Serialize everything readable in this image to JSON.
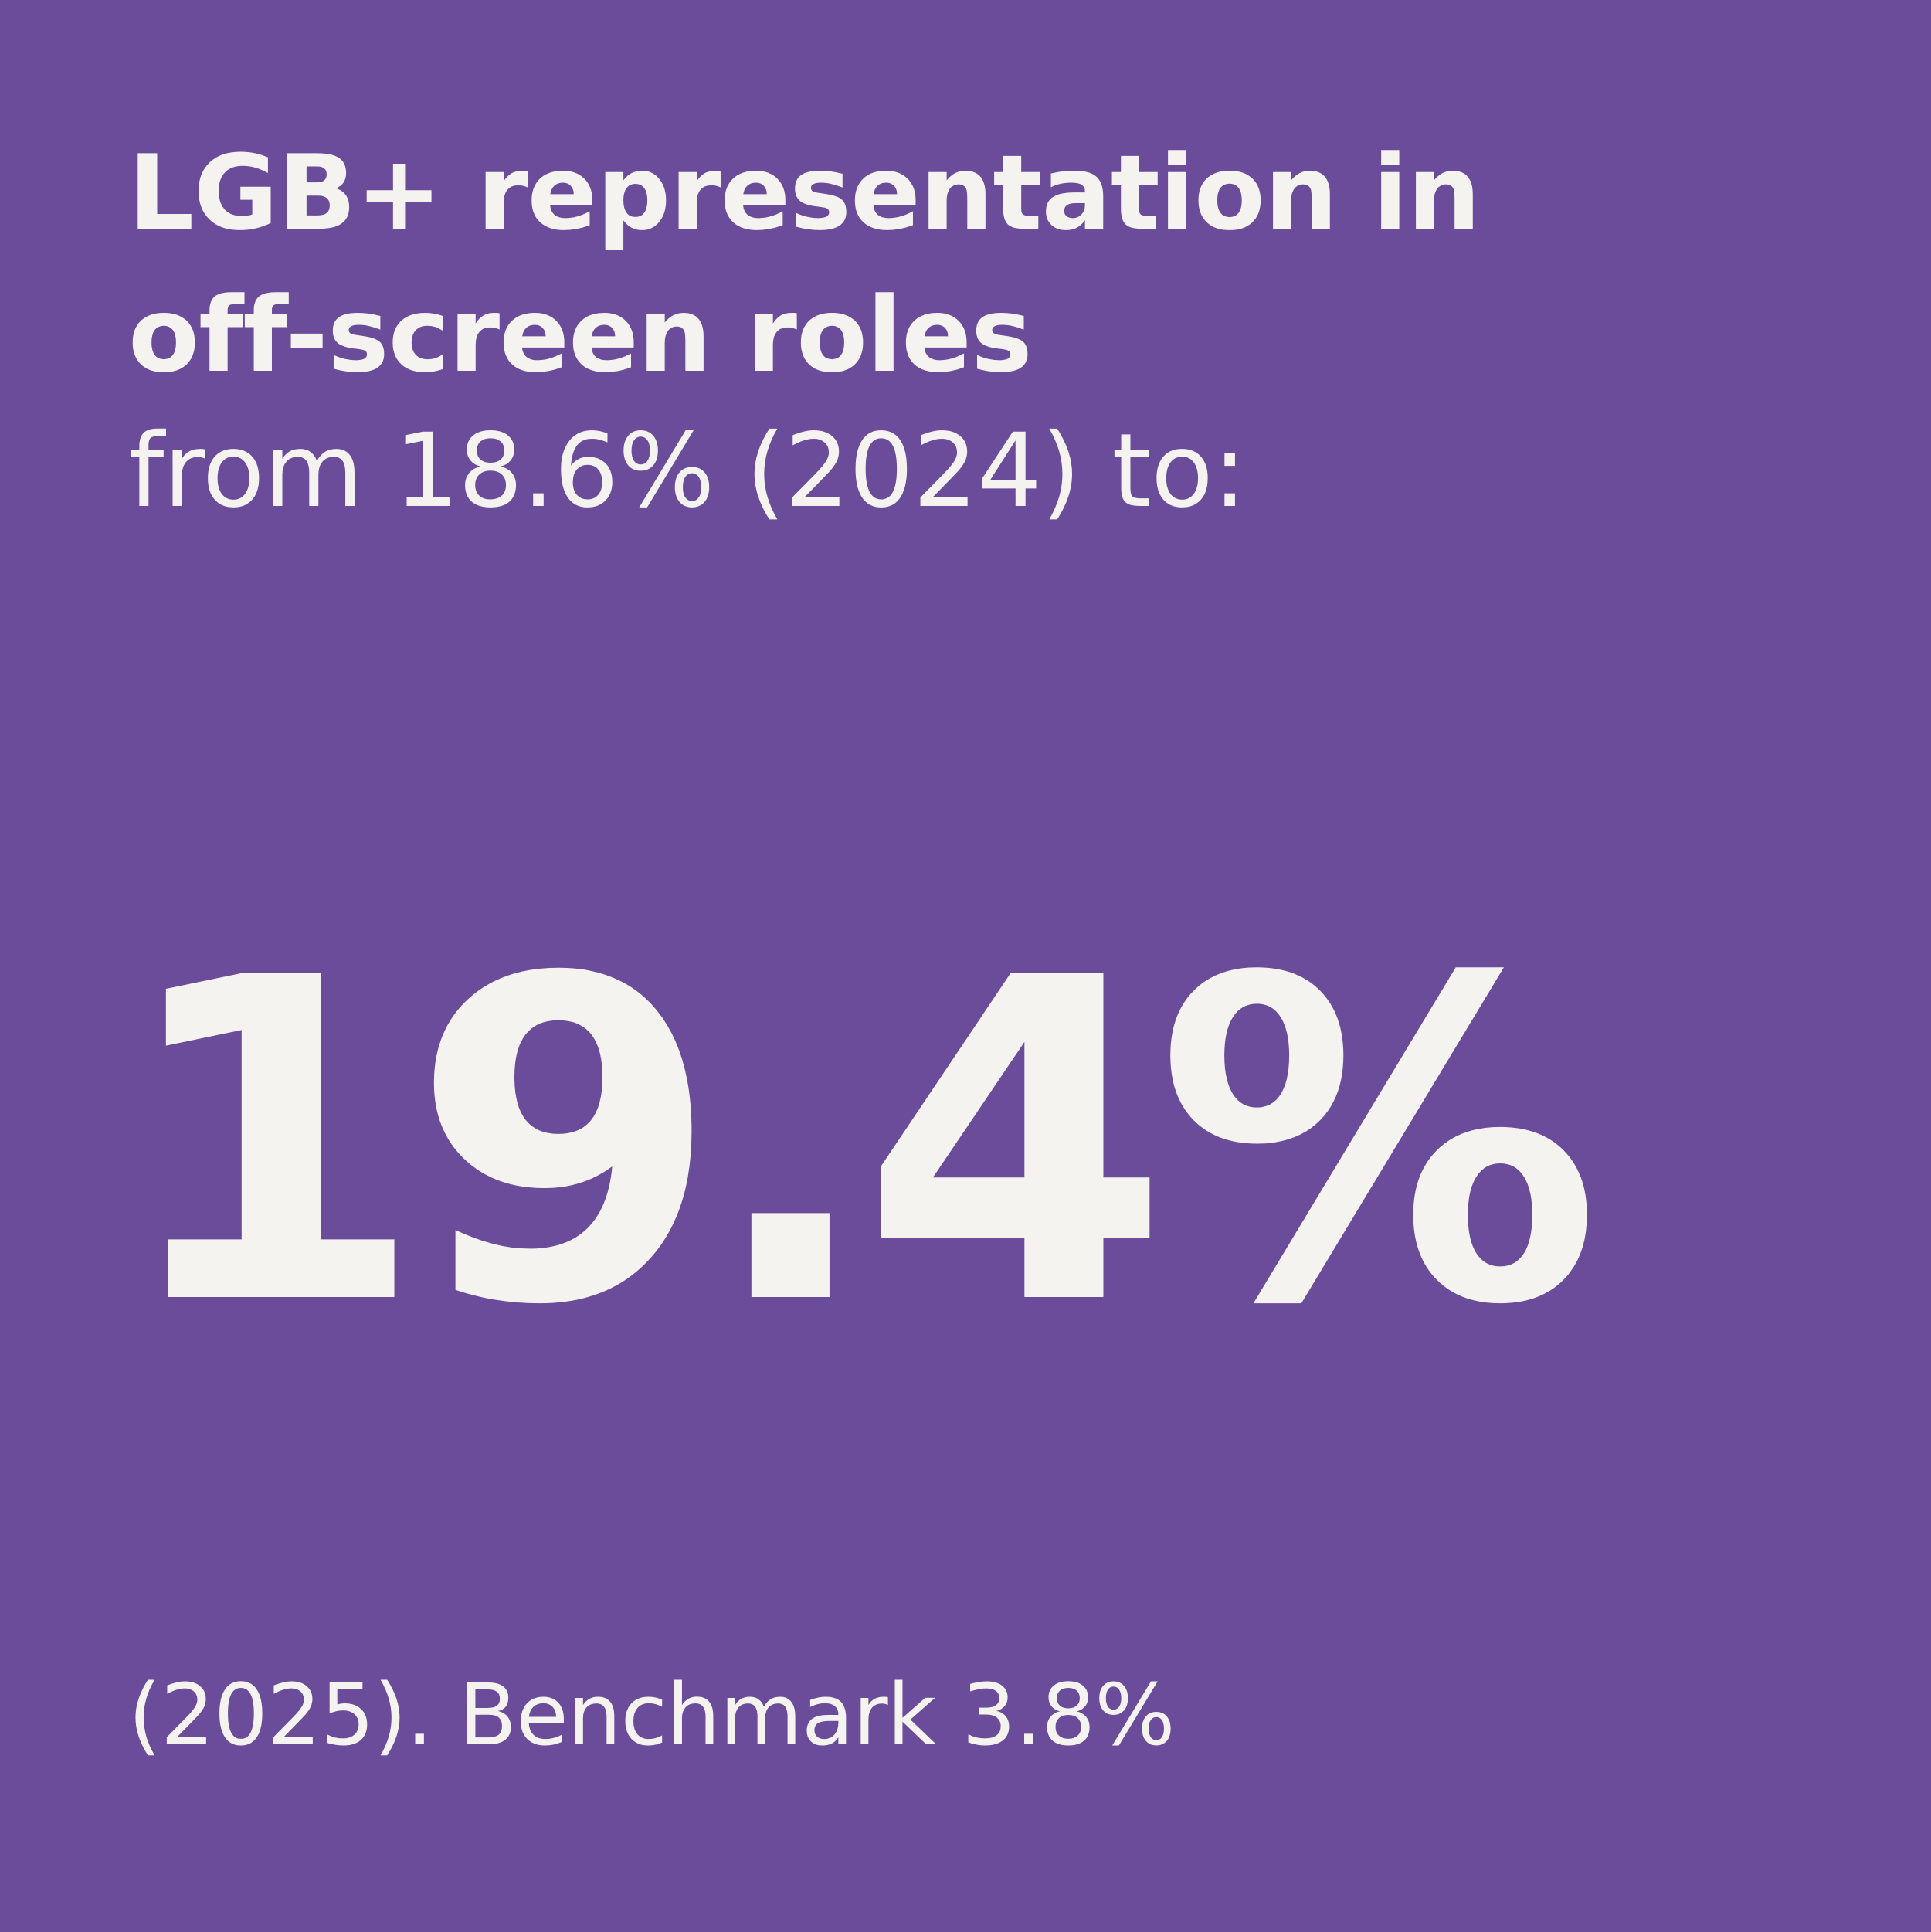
{
  "heading": {
    "line1": "LGB+ representation in",
    "line2": "off-screen roles"
  },
  "subheading": "from 18.6% (2024) to:",
  "headline_value": "19.4%",
  "footnote": "(2025). Benchmark 3.8%",
  "colors": {
    "background": "#6b4c9a",
    "text": "#f4f3ef"
  }
}
